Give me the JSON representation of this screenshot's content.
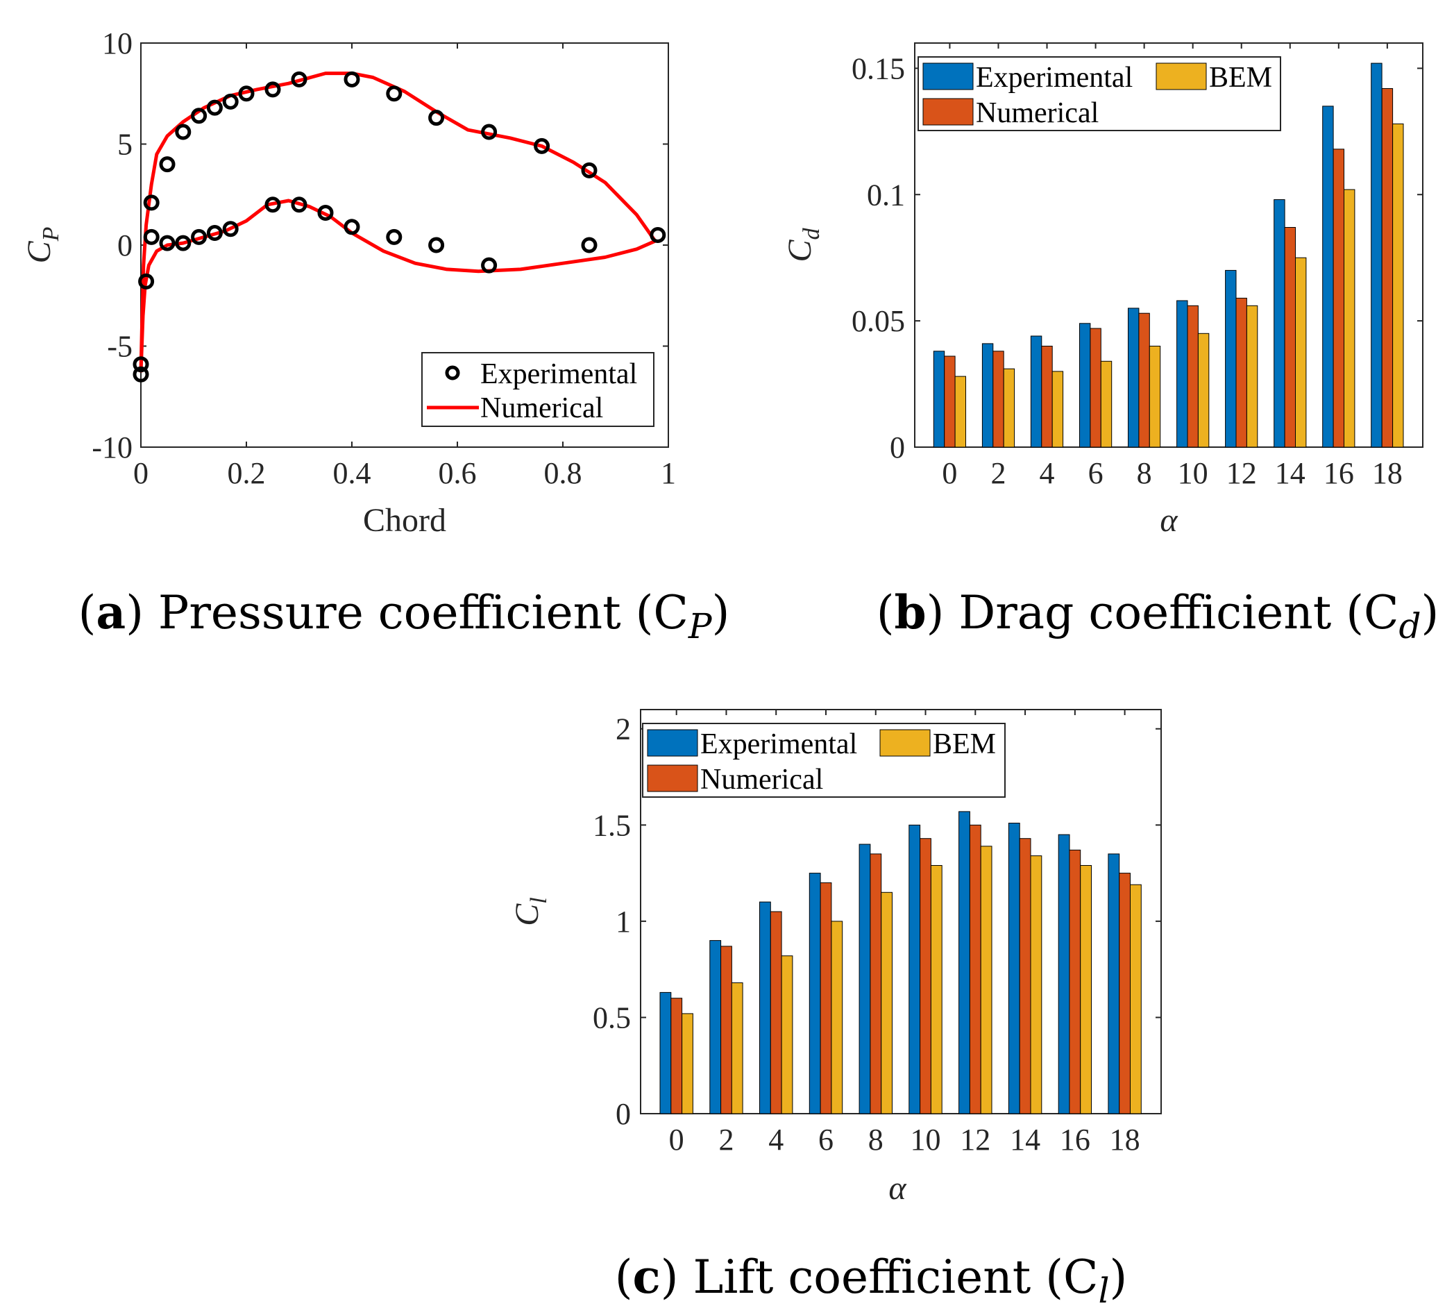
{
  "colors": {
    "experimental": "#0072BD",
    "numerical": "#D95319",
    "bem": "#EDB120",
    "line": "#FF0000",
    "marker": "#000000"
  },
  "chart_data": [
    {
      "id": "a",
      "type": "line",
      "caption": {
        "letter": "a",
        "text": "Pressure coefficient (C",
        "sub": "P",
        "close": ")"
      },
      "xlabel": "Chord",
      "ylabel": {
        "main": "C",
        "sub": "P"
      },
      "xlim": [
        0,
        1
      ],
      "ylim": [
        -10,
        10
      ],
      "xticks": [
        "0",
        "0.2",
        "0.4",
        "0.6",
        "0.8",
        "1"
      ],
      "yticks": [
        "-10",
        "-5",
        "0",
        "5",
        "10"
      ],
      "legend": {
        "position": "bottom-right",
        "entries": [
          "Experimental",
          "Numerical"
        ]
      },
      "series": [
        {
          "name": "Experimental",
          "style": "markers",
          "points": [
            [
              0.0,
              -6.4
            ],
            [
              0.0,
              -5.9
            ],
            [
              0.01,
              -1.8
            ],
            [
              0.02,
              2.1
            ],
            [
              0.05,
              4.0
            ],
            [
              0.08,
              5.6
            ],
            [
              0.11,
              6.4
            ],
            [
              0.14,
              6.8
            ],
            [
              0.17,
              7.1
            ],
            [
              0.2,
              7.5
            ],
            [
              0.25,
              7.7
            ],
            [
              0.3,
              8.2
            ],
            [
              0.4,
              8.2
            ],
            [
              0.48,
              7.5
            ],
            [
              0.56,
              6.3
            ],
            [
              0.66,
              5.6
            ],
            [
              0.76,
              4.9
            ],
            [
              0.85,
              3.7
            ],
            [
              0.98,
              0.5
            ],
            [
              0.02,
              0.4
            ],
            [
              0.05,
              0.1
            ],
            [
              0.08,
              0.1
            ],
            [
              0.11,
              0.4
            ],
            [
              0.14,
              0.6
            ],
            [
              0.17,
              0.8
            ],
            [
              0.25,
              2.0
            ],
            [
              0.3,
              2.0
            ],
            [
              0.35,
              1.6
            ],
            [
              0.4,
              0.9
            ],
            [
              0.48,
              0.4
            ],
            [
              0.56,
              0.0
            ],
            [
              0.66,
              -1.0
            ],
            [
              0.85,
              0.0
            ]
          ]
        },
        {
          "name": "Numerical",
          "style": "line",
          "points": [
            [
              0.0,
              -6.3
            ],
            [
              0.002,
              -4.0
            ],
            [
              0.005,
              -1.0
            ],
            [
              0.01,
              1.0
            ],
            [
              0.02,
              3.0
            ],
            [
              0.03,
              4.5
            ],
            [
              0.05,
              5.4
            ],
            [
              0.08,
              6.1
            ],
            [
              0.12,
              6.8
            ],
            [
              0.17,
              7.4
            ],
            [
              0.22,
              7.7
            ],
            [
              0.28,
              8.0
            ],
            [
              0.35,
              8.5
            ],
            [
              0.4,
              8.5
            ],
            [
              0.44,
              8.3
            ],
            [
              0.5,
              7.6
            ],
            [
              0.56,
              6.6
            ],
            [
              0.62,
              5.7
            ],
            [
              0.7,
              5.3
            ],
            [
              0.76,
              4.9
            ],
            [
              0.82,
              4.1
            ],
            [
              0.88,
              3.1
            ],
            [
              0.94,
              1.5
            ],
            [
              0.975,
              0.2
            ],
            [
              0.94,
              -0.2
            ],
            [
              0.88,
              -0.6
            ],
            [
              0.8,
              -0.9
            ],
            [
              0.72,
              -1.2
            ],
            [
              0.64,
              -1.3
            ],
            [
              0.58,
              -1.2
            ],
            [
              0.52,
              -0.9
            ],
            [
              0.46,
              -0.3
            ],
            [
              0.4,
              0.6
            ],
            [
              0.36,
              1.4
            ],
            [
              0.32,
              1.9
            ],
            [
              0.28,
              2.2
            ],
            [
              0.24,
              2.0
            ],
            [
              0.2,
              1.2
            ],
            [
              0.16,
              0.7
            ],
            [
              0.12,
              0.4
            ],
            [
              0.08,
              0.1
            ],
            [
              0.05,
              0.0
            ],
            [
              0.03,
              -0.3
            ],
            [
              0.015,
              -1.0
            ],
            [
              0.008,
              -2.0
            ],
            [
              0.004,
              -3.5
            ],
            [
              0.0,
              -6.3
            ]
          ]
        }
      ]
    },
    {
      "id": "b",
      "type": "bar",
      "caption": {
        "letter": "b",
        "text": "Drag coefficient (C",
        "sub": "d",
        "close": ")"
      },
      "xlabel": "α",
      "ylabel": {
        "main": "C",
        "sub": "d"
      },
      "ylim": [
        0,
        0.16
      ],
      "yticks": [
        "0",
        "0.05",
        "0.1",
        "0.15"
      ],
      "ytick_values": [
        0,
        0.05,
        0.1,
        0.15
      ],
      "categories": [
        "0",
        "2",
        "4",
        "6",
        "8",
        "10",
        "12",
        "14",
        "16",
        "18"
      ],
      "legend": {
        "position": "top-left",
        "entries": [
          "Experimental",
          "BEM",
          "Numerical"
        ]
      },
      "series": [
        {
          "name": "Experimental",
          "values": [
            0.038,
            0.041,
            0.044,
            0.049,
            0.055,
            0.058,
            0.07,
            0.098,
            0.135,
            0.152
          ]
        },
        {
          "name": "Numerical",
          "values": [
            0.036,
            0.038,
            0.04,
            0.047,
            0.053,
            0.056,
            0.059,
            0.087,
            0.118,
            0.142
          ]
        },
        {
          "name": "BEM",
          "values": [
            0.028,
            0.031,
            0.03,
            0.034,
            0.04,
            0.045,
            0.056,
            0.075,
            0.102,
            0.128
          ]
        }
      ]
    },
    {
      "id": "c",
      "type": "bar",
      "caption": {
        "letter": "c",
        "text": "Lift coefficient (C",
        "sub": "l",
        "close": ")"
      },
      "xlabel": "α",
      "ylabel": {
        "main": "C",
        "sub": "l"
      },
      "ylim": [
        0,
        2.1
      ],
      "yticks": [
        "0",
        "0.5",
        "1",
        "1.5",
        "2"
      ],
      "ytick_values": [
        0,
        0.5,
        1,
        1.5,
        2
      ],
      "categories": [
        "0",
        "2",
        "4",
        "6",
        "8",
        "10",
        "12",
        "14",
        "16",
        "18"
      ],
      "legend": {
        "position": "top-left",
        "entries": [
          "Experimental",
          "BEM",
          "Numerical"
        ]
      },
      "series": [
        {
          "name": "Experimental",
          "values": [
            0.63,
            0.9,
            1.1,
            1.25,
            1.4,
            1.5,
            1.57,
            1.51,
            1.45,
            1.35
          ]
        },
        {
          "name": "Numerical",
          "values": [
            0.6,
            0.87,
            1.05,
            1.2,
            1.35,
            1.43,
            1.5,
            1.43,
            1.37,
            1.25
          ]
        },
        {
          "name": "BEM",
          "values": [
            0.52,
            0.68,
            0.82,
            1.0,
            1.15,
            1.29,
            1.39,
            1.34,
            1.29,
            1.19
          ]
        }
      ]
    }
  ]
}
